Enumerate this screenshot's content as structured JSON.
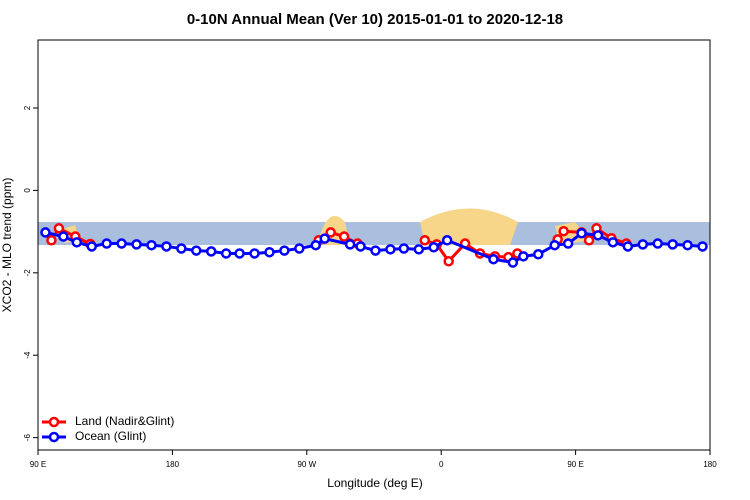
{
  "chart_data": {
    "type": "line",
    "title": "0-10N Annual Mean (Ver 10)   2015-01-01 to 2020-12-18",
    "xlabel": "Longitude (deg E)",
    "ylabel": "XCO2 - MLO trend (ppm)",
    "xlim": [
      90,
      540
    ],
    "ylim": [
      -6.3,
      3.65
    ],
    "xticks": [
      {
        "value": 90,
        "label": "90 E"
      },
      {
        "value": 180,
        "label": "180"
      },
      {
        "value": 270,
        "label": "90 W"
      },
      {
        "value": 360,
        "label": "0"
      },
      {
        "value": 450,
        "label": "90 E"
      },
      {
        "value": 540,
        "label": "180"
      }
    ],
    "yticks": [
      -6,
      -4,
      -2,
      0,
      2
    ],
    "legend": "bottom-left",
    "series": [
      {
        "name": "Land (Nadir&Glint)",
        "color": "#ff0000",
        "x": [
          99,
          104,
          115,
          125,
          null,
          278,
          286,
          295,
          304,
          null,
          349,
          357,
          365,
          376,
          386,
          396,
          405,
          411,
          null,
          438,
          442,
          454,
          459,
          464,
          474,
          484
        ],
        "values": [
          -1.21,
          -0.92,
          -1.12,
          -1.3,
          null,
          -1.21,
          -1.02,
          -1.12,
          -1.29,
          null,
          -1.21,
          -1.31,
          -1.72,
          -1.29,
          -1.53,
          -1.6,
          -1.62,
          -1.53,
          null,
          -1.19,
          -0.99,
          -1.02,
          -1.21,
          -0.92,
          -1.16,
          -1.29
        ]
      },
      {
        "name": "Ocean (Glint)",
        "color": "#0000ff",
        "x": [
          95,
          107,
          116,
          126,
          136,
          146,
          156,
          166,
          176,
          186,
          196,
          206,
          216,
          225,
          235,
          245,
          255,
          265,
          276,
          282,
          299,
          306,
          316,
          326,
          335,
          345,
          355,
          364,
          395,
          408,
          415,
          425,
          436,
          445,
          454,
          465,
          475,
          485,
          495,
          505,
          515,
          525,
          535
        ],
        "values": [
          -1.02,
          -1.12,
          -1.26,
          -1.36,
          -1.29,
          -1.29,
          -1.31,
          -1.33,
          -1.36,
          -1.41,
          -1.46,
          -1.48,
          -1.53,
          -1.53,
          -1.53,
          -1.5,
          -1.46,
          -1.41,
          -1.33,
          -1.17,
          -1.31,
          -1.36,
          -1.46,
          -1.43,
          -1.41,
          -1.43,
          -1.38,
          -1.21,
          -1.67,
          -1.75,
          -1.6,
          -1.55,
          -1.33,
          -1.29,
          -1.04,
          -1.09,
          -1.26,
          -1.36,
          -1.31,
          -1.29,
          -1.31,
          -1.33,
          -1.36
        ]
      }
    ]
  }
}
